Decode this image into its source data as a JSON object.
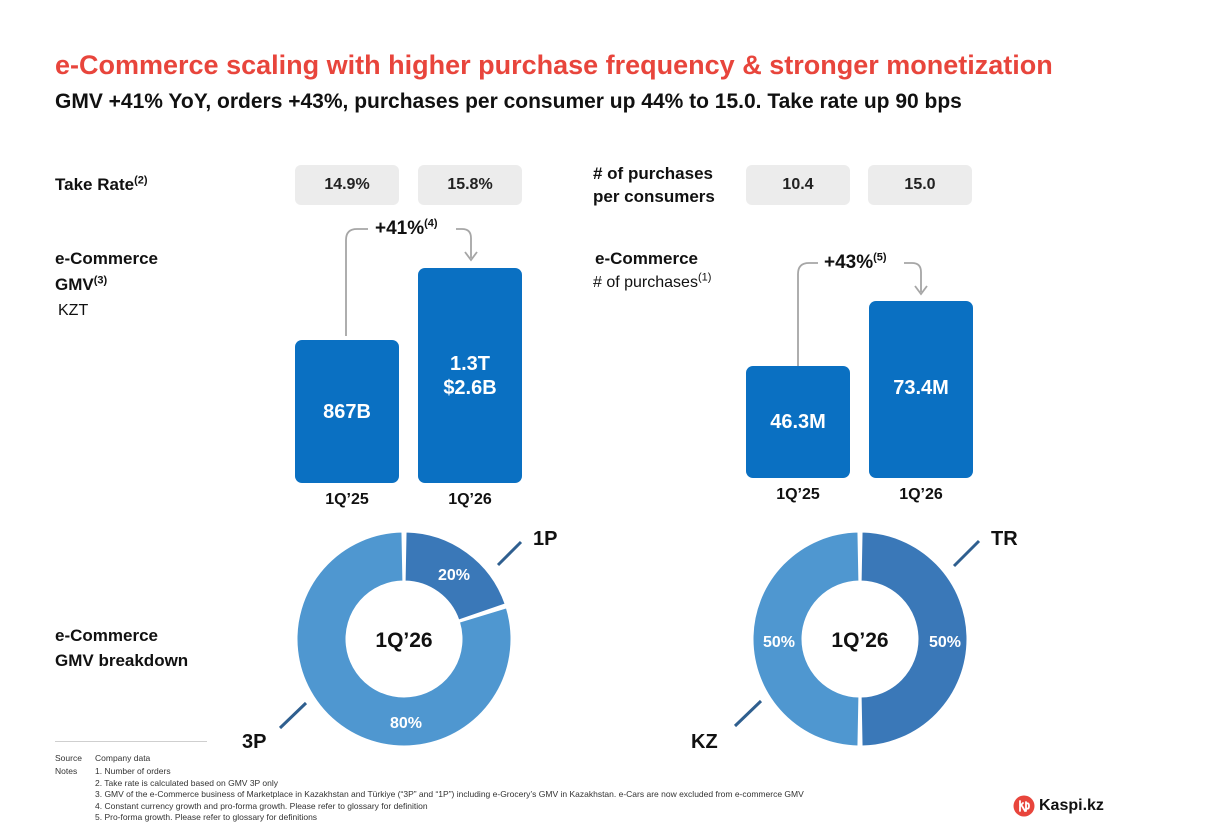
{
  "header": {
    "title": "e-Commerce scaling with higher purchase frequency & stronger monetization",
    "subtitle": "GMV +41% YoY, orders +43%, purchases per consumer up 44% to 15.0. Take rate up 90 bps"
  },
  "left_panel": {
    "take_rate_label": "Take Rate",
    "take_rate_sup": "(2)",
    "take_rate_values": [
      "14.9%",
      "15.8%"
    ],
    "gmv_label_line1": "e-Commerce",
    "gmv_label_line2": "GMV",
    "gmv_label_sup": "(3)",
    "gmv_unit": "KZT",
    "growth": "+41%",
    "growth_sup": "(4)",
    "bars": [
      {
        "period": "1Q’25",
        "text1": "867B",
        "text2": ""
      },
      {
        "period": "1Q’26",
        "text1": "1.3T",
        "text2": "$2.6B"
      }
    ],
    "breakdown_label_line1": "e-Commerce",
    "breakdown_label_line2": "GMV breakdown"
  },
  "right_panel": {
    "purchases_per_consumer_line1": "# of purchases",
    "purchases_per_consumer_line2": "per consumers",
    "purchases_per_consumer_values": [
      "10.4",
      "15.0"
    ],
    "purchases_label_line1": "e-Commerce",
    "purchases_label_line2": "# of purchases",
    "purchases_label_sup": "(1)",
    "growth": "+43%",
    "growth_sup": "(5)",
    "bars": [
      {
        "period": "1Q’25",
        "text1": "46.3M"
      },
      {
        "period": "1Q’26",
        "text1": "73.4M"
      }
    ]
  },
  "chart_data": [
    {
      "type": "bar",
      "title": "e-Commerce GMV",
      "ylabel": "KZT",
      "categories": [
        "1Q’25",
        "1Q’26"
      ],
      "values": [
        867,
        1300
      ],
      "value_labels": [
        "867B",
        "1.3T"
      ],
      "annotation": "+41%"
    },
    {
      "type": "bar",
      "title": "e-Commerce # of purchases",
      "categories": [
        "1Q’25",
        "1Q’26"
      ],
      "values": [
        46.3,
        73.4
      ],
      "value_labels": [
        "46.3M",
        "73.4M"
      ],
      "annotation": "+43%"
    },
    {
      "type": "pie",
      "title": "e-Commerce GMV breakdown",
      "center_label": "1Q’26",
      "labels": [
        "1P",
        "3P"
      ],
      "values": [
        20,
        80
      ],
      "value_labels": [
        "20%",
        "80%"
      ]
    },
    {
      "type": "pie",
      "center_label": "1Q’26",
      "labels": [
        "TR",
        "KZ"
      ],
      "values": [
        50,
        50
      ],
      "value_labels": [
        "50%",
        "50%"
      ]
    }
  ],
  "colors": {
    "title_red": "#e8453c",
    "bar_blue": "#0a70c2",
    "donut_light": "#4f97d0",
    "donut_dark": "#3a78b8",
    "pill_gray": "#ececec",
    "connector_gray": "#a6a6a6",
    "leader_blue": "#2f5f8f"
  },
  "footnotes": {
    "source_key": "Source",
    "source_value": "Company data",
    "notes_key": "Notes",
    "items": [
      "1. Number of orders",
      "2. Take rate is calculated based on GMV 3P only",
      "3. GMV of the e-Commerce business of Marketplace in Kazakhstan and Türkiye  (“3P” and “1P”) including e-Grocery’s GMV in Kazakhstan. e-Cars are now excluded from e-commerce GMV",
      "4. Constant currency growth and pro-forma growth. Please refer to glossary for definition",
      "5. Pro-forma growth. Please refer to glossary for definitions"
    ]
  },
  "brand": {
    "name": "Kaspi.kz",
    "icon": "kaspi-logo-icon"
  }
}
